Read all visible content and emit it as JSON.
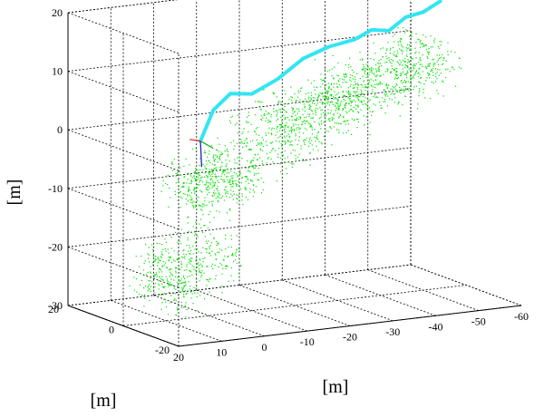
{
  "chart_data": {
    "type": "scatter",
    "projection": "3d",
    "title": "",
    "xlabel": "[m]",
    "ylabel": "[m]",
    "zlabel": "[m]",
    "x_ticks": [
      "20",
      "10",
      "0",
      "-10",
      "-20",
      "-30",
      "-40",
      "-50",
      "-60"
    ],
    "x_tick_values": [
      20,
      10,
      0,
      -10,
      -20,
      -30,
      -40,
      -50,
      -60
    ],
    "y_ticks": [
      "20",
      "0",
      "-20"
    ],
    "y_tick_values": [
      20,
      0,
      -20
    ],
    "z_ticks": [
      "20",
      "10",
      "0",
      "-10",
      "-20",
      "-30"
    ],
    "z_tick_values": [
      20,
      10,
      0,
      -10,
      -20,
      -30
    ],
    "xlim": [
      20,
      -60
    ],
    "ylim": [
      -20,
      20
    ],
    "zlim": [
      -30,
      20
    ],
    "grid": true,
    "series": [
      {
        "kind": "trajectory",
        "color": "#33e5f2",
        "points": [
          [
            2,
            0,
            0
          ],
          [
            -1,
            0,
            5
          ],
          [
            -5,
            0,
            7.5
          ],
          [
            -10,
            0,
            7
          ],
          [
            -16,
            0,
            9
          ],
          [
            -22,
            0,
            12
          ],
          [
            -28,
            0,
            13.5
          ],
          [
            -34,
            0,
            14.2
          ],
          [
            -38,
            0,
            15.5
          ],
          [
            -42,
            0,
            15
          ],
          [
            -46,
            0,
            17
          ],
          [
            -50,
            0,
            17.5
          ],
          [
            -54,
            0,
            19
          ]
        ]
      },
      {
        "kind": "point-cloud",
        "color": "#00e000",
        "points": [
          [
            10,
            0,
            -22
          ],
          [
            8,
            -5,
            -18
          ],
          [
            6,
            5,
            -20
          ],
          [
            4,
            -8,
            -15
          ],
          [
            2,
            0,
            -5
          ],
          [
            0,
            4,
            -8
          ],
          [
            -4,
            -2,
            -3
          ],
          [
            -8,
            6,
            -6
          ],
          [
            -12,
            0,
            0
          ],
          [
            -16,
            -4,
            2
          ],
          [
            -20,
            3,
            4
          ],
          [
            -24,
            0,
            5
          ],
          [
            -28,
            -3,
            6
          ],
          [
            -32,
            2,
            7
          ],
          [
            -36,
            0,
            8
          ],
          [
            -40,
            -2,
            9
          ],
          [
            -44,
            1,
            10
          ],
          [
            -48,
            0,
            11
          ],
          [
            -52,
            2,
            12
          ]
        ]
      }
    ],
    "frame_colors": {
      "x": "#e53030",
      "y": "#2020c0",
      "z": "#20b020"
    }
  }
}
